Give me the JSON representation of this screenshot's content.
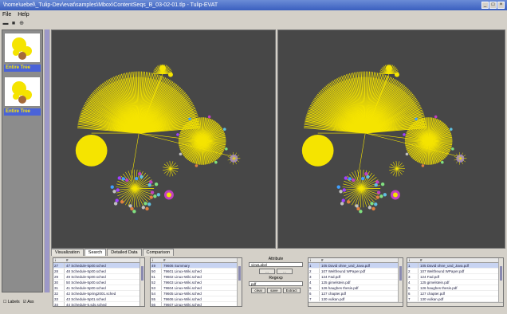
{
  "window": {
    "title": "\\home\\uebel\\_Tulip-Dev\\evat\\samples\\Mbox\\ContentSeqs_B_03-02-01.tlp - Tulip-EVAT"
  },
  "menu": [
    "File",
    "Help"
  ],
  "sidebar": {
    "items": [
      {
        "label": "Entire Tree"
      },
      {
        "label": "Entire Tree"
      }
    ]
  },
  "tabs": [
    "Visualization",
    "Search",
    "Detailed Data",
    "Comparison"
  ],
  "tables": [
    {
      "header": [
        "i",
        "#"
      ],
      "rows": [
        {
          "id": "27",
          "text": "47 Schedule-5p00.sched"
        },
        {
          "id": "28",
          "text": "48 Schedule-5p00.sched"
        },
        {
          "id": "29",
          "text": "49 Schedule-5p00.sched"
        },
        {
          "id": "30",
          "text": "50 Schedule-5p00.sched"
        },
        {
          "id": "31",
          "text": "41 Schedule-5p00.sched"
        },
        {
          "id": "32",
          "text": "42 Schedule-5pring2001.sched"
        },
        {
          "id": "33",
          "text": "43 Schedule-5p01.sched"
        },
        {
          "id": "34",
          "text": "44 Schedule-5.sds.sched"
        }
      ]
    },
    {
      "header": [
        "i",
        "#"
      ],
      "rows": [
        {
          "id": "49",
          "text": "79606 Summary"
        },
        {
          "id": "50",
          "text": "79601 Linux-Wiki.sched"
        },
        {
          "id": "51",
          "text": "79602 Linux-Wiki.sched"
        },
        {
          "id": "52",
          "text": "79603 Linux-Wiki.sched"
        },
        {
          "id": "53",
          "text": "79604 Linux-Wiki.sched"
        },
        {
          "id": "54",
          "text": "79605 Linux-Wiki.sched"
        },
        {
          "id": "55",
          "text": "79606 Linux-Wiki.sched"
        },
        {
          "id": "56",
          "text": "79607 Linux-Wiki.sched"
        }
      ]
    },
    {
      "header": [
        "i",
        "#"
      ],
      "rows": [
        {
          "id": "1",
          "text": "105 David ohne_und_Java.pdf"
        },
        {
          "id": "2",
          "text": "107 Weltfreund WPaper.pdf"
        },
        {
          "id": "3",
          "text": "124 Fad.pdf"
        },
        {
          "id": "4",
          "text": "125 gimelstein.pdf"
        },
        {
          "id": "5",
          "text": "126 haughes thesis.pdf"
        },
        {
          "id": "6",
          "text": "127 chapter.pdf"
        },
        {
          "id": "7",
          "text": "130 vulkan.pdf"
        }
      ]
    },
    {
      "header": [
        "i",
        "#"
      ],
      "rows": [
        {
          "id": "1",
          "text": "105 David ohne_und_Java.pdf"
        },
        {
          "id": "2",
          "text": "107 Weltfreund WPaper.pdf"
        },
        {
          "id": "3",
          "text": "124 Fad.pdf"
        },
        {
          "id": "4",
          "text": "125 gimelstein.pdf"
        },
        {
          "id": "5",
          "text": "126 haughes thesis.pdf"
        },
        {
          "id": "6",
          "text": "127 chapter.pdf"
        },
        {
          "id": "7",
          "text": "130 vulkan.pdf"
        }
      ]
    }
  ],
  "controls": {
    "attribute_label": "Attribute",
    "attribute_value": "viewLabel",
    "btn_left": "...",
    "btn_right": "...",
    "regexp_label": "Regexp",
    "regexp_value": "pdf",
    "clear": "clear",
    "save": "save",
    "extract": "Extract"
  },
  "status": {
    "labels": "Labels",
    "info": "Ass"
  },
  "colors": {
    "node": "#f5e400",
    "view_bg": "#474747",
    "accent": "#4a63d8"
  }
}
